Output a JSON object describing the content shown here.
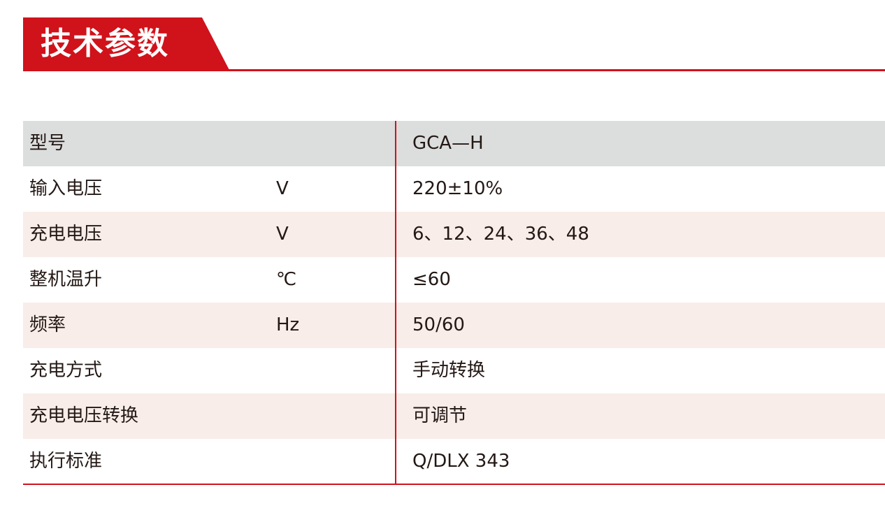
{
  "title": "技术参数",
  "colors": {
    "accent": "#d0121b",
    "header_bg": "#dcdddd",
    "alt_row_bg": "#f8ede8"
  },
  "table": {
    "header": {
      "label": "型号",
      "unit": "",
      "value": "GCA—H"
    },
    "rows": [
      {
        "label": "输入电压",
        "unit": "V",
        "value": "220±10%"
      },
      {
        "label": "充电电压",
        "unit": "V",
        "value": "6、12、24、36、48"
      },
      {
        "label": "整机温升",
        "unit": "℃",
        "value": "≤60"
      },
      {
        "label": "频率",
        "unit": "Hz",
        "value": "50/60"
      },
      {
        "label": "充电方式",
        "unit": "",
        "value": "手动转换"
      },
      {
        "label": "充电电压转换",
        "unit": "",
        "value": "可调节"
      },
      {
        "label": "执行标准",
        "unit": "",
        "value": "Q/DLX 343"
      }
    ]
  }
}
